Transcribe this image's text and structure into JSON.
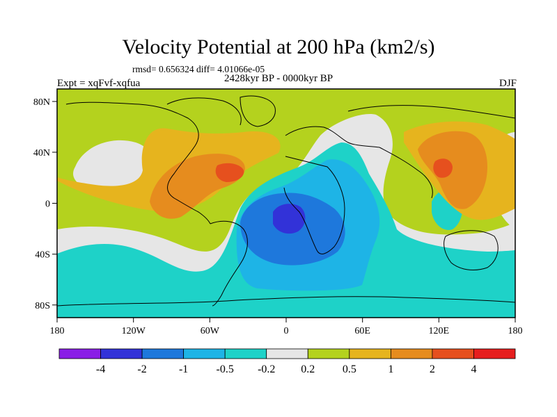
{
  "title": "Velocity Potential at 200 hPa (km2/s)",
  "stats": "rmsd= 0.656324 diff= 4.01066e-05",
  "experiment": "Expt = xqFvf-xqfua",
  "period": "2428kyr BP - 0000kyr BP",
  "season": "DJF",
  "x_ticks": [
    "180",
    "120W",
    "60W",
    "0",
    "60E",
    "120E",
    "180"
  ],
  "y_ticks": [
    "80N",
    "40N",
    "0",
    "40S",
    "80S"
  ],
  "colorbar": {
    "labels": [
      "-4",
      "-2",
      "-1",
      "-0.5",
      "-0.2",
      "0.2",
      "0.5",
      "1",
      "2",
      "4"
    ],
    "colors": [
      "#8a1ee6",
      "#3232d8",
      "#1e78dc",
      "#1eb4e6",
      "#1ed2c8",
      "#e6e6e6",
      "#b4d21e",
      "#e6b41e",
      "#e68c1e",
      "#e6501e",
      "#e61e1e"
    ]
  },
  "palette": {
    "band_negative_strong": "#3232d8",
    "band_negative_mid": "#1e78dc",
    "band_negative_weak": "#1eb4e6",
    "band_negative_small": "#1ed2c8",
    "band_neutral": "#e6e6e6",
    "band_positive_small": "#b4d21e",
    "band_positive_weak": "#e6b41e",
    "band_positive_mid": "#e68c1e",
    "band_positive_strong": "#e6501e"
  }
}
